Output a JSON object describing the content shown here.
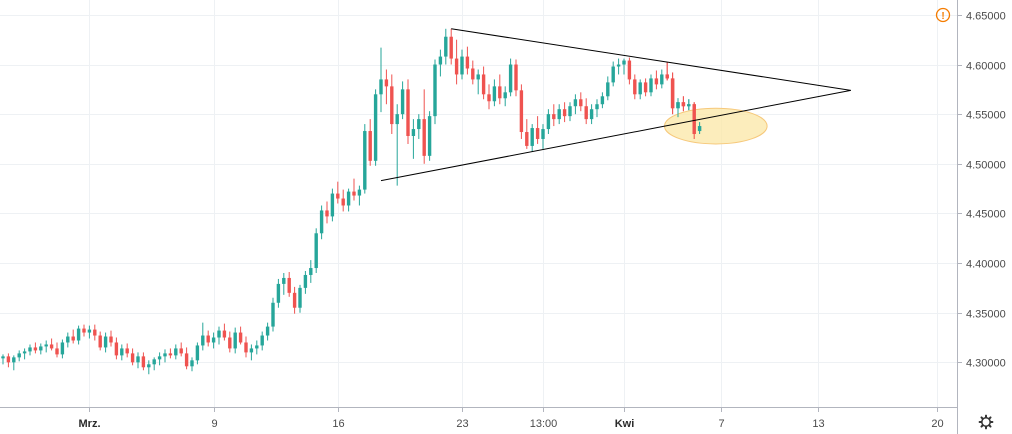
{
  "colors": {
    "up": "#26a69a",
    "down": "#ef5350",
    "grid": "#eef1f4",
    "axis": "#b2b5be",
    "text": "#4a4a4a",
    "triangle": "#000000",
    "highlight_fill": "#fbe7a6",
    "highlight_stroke": "#f6c87a",
    "alert": "#f57c00"
  },
  "icons": {
    "alert": "alert-circle-icon",
    "settings": "gear-icon"
  },
  "alert_symbol": "!",
  "chart_data": {
    "type": "candlestick",
    "title": "",
    "xlabel": "",
    "ylabel": "",
    "ylim": [
      4.255,
      4.665
    ],
    "grid": true,
    "y_ticks": [
      "4.65000",
      "4.60000",
      "4.55000",
      "4.50000",
      "4.45000",
      "4.40000",
      "4.35000",
      "4.30000"
    ],
    "x_ticks": [
      {
        "label": "Mrz.",
        "bar": 16,
        "bold": true
      },
      {
        "label": "9",
        "bar": 39,
        "bold": false
      },
      {
        "label": "16",
        "bar": 62,
        "bold": false
      },
      {
        "label": "23",
        "bar": 85,
        "bold": false
      },
      {
        "label": "13:00",
        "bar": 100,
        "bold": false
      },
      {
        "label": "Kwi",
        "bar": 115,
        "bold": true
      },
      {
        "label": "7",
        "bar": 133,
        "bold": false
      },
      {
        "label": "13",
        "bar": 151,
        "bold": false
      },
      {
        "label": "20",
        "bar": 173,
        "bold": false
      }
    ],
    "candles": [
      [
        4.304,
        4.308,
        4.298,
        4.306
      ],
      [
        4.306,
        4.309,
        4.295,
        4.3
      ],
      [
        4.3,
        4.307,
        4.292,
        4.305
      ],
      [
        4.305,
        4.312,
        4.301,
        4.309
      ],
      [
        4.309,
        4.314,
        4.303,
        4.311
      ],
      [
        4.311,
        4.318,
        4.307,
        4.315
      ],
      [
        4.315,
        4.32,
        4.309,
        4.312
      ],
      [
        4.312,
        4.319,
        4.308,
        4.316
      ],
      [
        4.316,
        4.322,
        4.31,
        4.318
      ],
      [
        4.318,
        4.324,
        4.312,
        4.314
      ],
      [
        4.314,
        4.32,
        4.305,
        4.308
      ],
      [
        4.308,
        4.323,
        4.304,
        4.32
      ],
      [
        4.32,
        4.33,
        4.315,
        4.326
      ],
      [
        4.326,
        4.333,
        4.319,
        4.322
      ],
      [
        4.322,
        4.337,
        4.318,
        4.334
      ],
      [
        4.334,
        4.338,
        4.326,
        4.33
      ],
      [
        4.33,
        4.337,
        4.324,
        4.333
      ],
      [
        4.333,
        4.338,
        4.322,
        4.327
      ],
      [
        4.327,
        4.331,
        4.312,
        4.315
      ],
      [
        4.315,
        4.33,
        4.31,
        4.326
      ],
      [
        4.326,
        4.332,
        4.316,
        4.32
      ],
      [
        4.32,
        4.325,
        4.303,
        4.307
      ],
      [
        4.307,
        4.318,
        4.302,
        4.314
      ],
      [
        4.314,
        4.319,
        4.305,
        4.309
      ],
      [
        4.309,
        4.314,
        4.297,
        4.3
      ],
      [
        4.3,
        4.31,
        4.294,
        4.306
      ],
      [
        4.306,
        4.31,
        4.292,
        4.295
      ],
      [
        4.295,
        4.302,
        4.288,
        4.298
      ],
      [
        4.298,
        4.305,
        4.292,
        4.303
      ],
      [
        4.303,
        4.31,
        4.297,
        4.306
      ],
      [
        4.306,
        4.313,
        4.3,
        4.309
      ],
      [
        4.309,
        4.314,
        4.304,
        4.307
      ],
      [
        4.307,
        4.318,
        4.303,
        4.314
      ],
      [
        4.314,
        4.32,
        4.306,
        4.309
      ],
      [
        4.309,
        4.315,
        4.293,
        4.296
      ],
      [
        4.296,
        4.305,
        4.291,
        4.302
      ],
      [
        4.302,
        4.32,
        4.298,
        4.317
      ],
      [
        4.317,
        4.34,
        4.312,
        4.327
      ],
      [
        4.327,
        4.332,
        4.316,
        4.32
      ],
      [
        4.32,
        4.33,
        4.314,
        4.325
      ],
      [
        4.325,
        4.336,
        4.318,
        4.332
      ],
      [
        4.332,
        4.339,
        4.322,
        4.325
      ],
      [
        4.325,
        4.331,
        4.31,
        4.314
      ],
      [
        4.314,
        4.335,
        4.309,
        4.33
      ],
      [
        4.33,
        4.336,
        4.318,
        4.32
      ],
      [
        4.32,
        4.326,
        4.305,
        4.31
      ],
      [
        4.31,
        4.318,
        4.302,
        4.314
      ],
      [
        4.314,
        4.322,
        4.308,
        4.317
      ],
      [
        4.317,
        4.331,
        4.312,
        4.327
      ],
      [
        4.327,
        4.34,
        4.322,
        4.336
      ],
      [
        4.336,
        4.365,
        4.331,
        4.36
      ],
      [
        4.36,
        4.384,
        4.355,
        4.379
      ],
      [
        4.379,
        4.39,
        4.368,
        4.385
      ],
      [
        4.385,
        4.391,
        4.366,
        4.37
      ],
      [
        4.37,
        4.376,
        4.349,
        4.355
      ],
      [
        4.355,
        4.378,
        4.35,
        4.375
      ],
      [
        4.375,
        4.392,
        4.369,
        4.388
      ],
      [
        4.388,
        4.403,
        4.38,
        4.395
      ],
      [
        4.395,
        4.435,
        4.39,
        4.43
      ],
      [
        4.43,
        4.458,
        4.424,
        4.453
      ],
      [
        4.453,
        4.462,
        4.44,
        4.447
      ],
      [
        4.447,
        4.475,
        4.442,
        4.47
      ],
      [
        4.47,
        4.482,
        4.46,
        4.465
      ],
      [
        4.465,
        4.474,
        4.452,
        4.458
      ],
      [
        4.458,
        4.475,
        4.452,
        4.472
      ],
      [
        4.472,
        4.485,
        4.463,
        4.468
      ],
      [
        4.468,
        4.478,
        4.458,
        4.474
      ],
      [
        4.474,
        4.54,
        4.47,
        4.533
      ],
      [
        4.533,
        4.545,
        4.498,
        4.503
      ],
      [
        4.503,
        4.575,
        4.498,
        4.57
      ],
      [
        4.57,
        4.617,
        4.552,
        4.585
      ],
      [
        4.585,
        4.595,
        4.56,
        4.578
      ],
      [
        4.578,
        4.59,
        4.53,
        4.54
      ],
      [
        4.54,
        4.56,
        4.478,
        4.55
      ],
      [
        4.55,
        4.583,
        4.545,
        4.575
      ],
      [
        4.575,
        4.585,
        4.52,
        4.528
      ],
      [
        4.528,
        4.545,
        4.505,
        4.535
      ],
      [
        4.535,
        4.55,
        4.525,
        4.545
      ],
      [
        4.545,
        4.575,
        4.5,
        4.508
      ],
      [
        4.508,
        4.553,
        4.503,
        4.548
      ],
      [
        4.548,
        4.605,
        4.54,
        4.6
      ],
      [
        4.6,
        4.615,
        4.588,
        4.608
      ],
      [
        4.608,
        4.636,
        4.6,
        4.628
      ],
      [
        4.628,
        4.636,
        4.6,
        4.606
      ],
      [
        4.606,
        4.625,
        4.58,
        4.59
      ],
      [
        4.59,
        4.615,
        4.585,
        4.608
      ],
      [
        4.608,
        4.618,
        4.59,
        4.596
      ],
      [
        4.596,
        4.604,
        4.58,
        4.585
      ],
      [
        4.585,
        4.595,
        4.57,
        4.59
      ],
      [
        4.59,
        4.598,
        4.565,
        4.57
      ],
      [
        4.57,
        4.58,
        4.555,
        4.563
      ],
      [
        4.563,
        4.585,
        4.558,
        4.578
      ],
      [
        4.578,
        4.59,
        4.56,
        4.566
      ],
      [
        4.566,
        4.578,
        4.558,
        4.572
      ],
      [
        4.572,
        4.606,
        4.568,
        4.6
      ],
      [
        4.6,
        4.605,
        4.568,
        4.574
      ],
      [
        4.574,
        4.58,
        4.525,
        4.532
      ],
      [
        4.532,
        4.545,
        4.515,
        4.518
      ],
      [
        4.518,
        4.54,
        4.512,
        4.536
      ],
      [
        4.536,
        4.548,
        4.52,
        4.525
      ],
      [
        4.525,
        4.54,
        4.515,
        4.535
      ],
      [
        4.535,
        4.555,
        4.53,
        4.55
      ],
      [
        4.55,
        4.56,
        4.538,
        4.545
      ],
      [
        4.545,
        4.56,
        4.54,
        4.555
      ],
      [
        4.555,
        4.562,
        4.542,
        4.548
      ],
      [
        4.548,
        4.562,
        4.543,
        4.558
      ],
      [
        4.558,
        4.57,
        4.55,
        4.565
      ],
      [
        4.565,
        4.572,
        4.553,
        4.558
      ],
      [
        4.558,
        4.566,
        4.54,
        4.545
      ],
      [
        4.545,
        4.56,
        4.54,
        4.555
      ],
      [
        4.555,
        4.565,
        4.547,
        4.56
      ],
      [
        4.56,
        4.572,
        4.556,
        4.568
      ],
      [
        4.568,
        4.588,
        4.564,
        4.582
      ],
      [
        4.582,
        4.603,
        4.578,
        4.598
      ],
      [
        4.598,
        4.606,
        4.59,
        4.6
      ],
      [
        4.6,
        4.606,
        4.59,
        4.604
      ],
      [
        4.604,
        4.607,
        4.58,
        4.585
      ],
      [
        4.585,
        4.59,
        4.565,
        4.57
      ],
      [
        4.57,
        4.585,
        4.565,
        4.582
      ],
      [
        4.582,
        4.586,
        4.568,
        4.572
      ],
      [
        4.572,
        4.59,
        4.568,
        4.586
      ],
      [
        4.586,
        4.594,
        4.575,
        4.58
      ],
      [
        4.58,
        4.595,
        4.576,
        4.59
      ],
      [
        4.59,
        4.602,
        4.584,
        4.586
      ],
      [
        4.586,
        4.592,
        4.55,
        4.556
      ],
      [
        4.556,
        4.566,
        4.547,
        4.562
      ],
      [
        4.562,
        4.568,
        4.553,
        4.558
      ],
      [
        4.558,
        4.565,
        4.554,
        4.56
      ],
      [
        4.56,
        4.562,
        4.525,
        4.53
      ],
      [
        4.533,
        4.542,
        4.53,
        4.538
      ]
    ],
    "annotations": {
      "triangle_upper": [
        [
          83,
          4.636
        ],
        [
          157,
          4.574
        ]
      ],
      "triangle_lower": [
        [
          70,
          4.483
        ],
        [
          157,
          4.574
        ]
      ],
      "highlight_ellipse": {
        "center": [
          132,
          4.538
        ],
        "rx_bars": 9.5,
        "ry": 0.018
      }
    }
  }
}
